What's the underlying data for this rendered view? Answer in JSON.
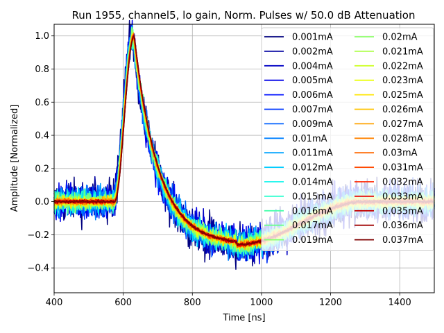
{
  "chart_data": {
    "type": "line",
    "title": "Run 1955, channel5, lo gain, Norm. Pulses w/ 50.0 dB Attenuation",
    "xlabel": "Time [ns]",
    "ylabel": "Amplitude [Normalized]",
    "xlim": [
      400,
      1500
    ],
    "ylim": [
      -0.55,
      1.07
    ],
    "xticks": [
      400,
      600,
      800,
      1000,
      1200,
      1400
    ],
    "yticks": [
      -0.4,
      -0.2,
      0.0,
      0.2,
      0.4,
      0.6,
      0.8,
      1.0
    ],
    "xtick_labels": [
      "400",
      "600",
      "800",
      "1000",
      "1200",
      "1400"
    ],
    "ytick_labels": [
      "−0.4",
      "−0.2",
      "0.0",
      "0.2",
      "0.4",
      "0.6",
      "0.8",
      "1.0"
    ],
    "grid": true,
    "legend_location": "top-right",
    "legend_columns": 2,
    "pulse_shape": {
      "baseline": 0.0,
      "onset_ns": 575,
      "peak_ns": 632,
      "peak_value": 1.0,
      "undershoot_min_ns": 930,
      "undershoot_value": -0.26,
      "recovery_ns": 1300
    },
    "series": [
      {
        "name": "0.001mA",
        "color": "#00007f"
      },
      {
        "name": "0.002mA",
        "color": "#00009f"
      },
      {
        "name": "0.004mA",
        "color": "#0000c3"
      },
      {
        "name": "0.005mA",
        "color": "#0000e8"
      },
      {
        "name": "0.006mA",
        "color": "#0010ff"
      },
      {
        "name": "0.007mA",
        "color": "#0038ff"
      },
      {
        "name": "0.009mA",
        "color": "#0060ff"
      },
      {
        "name": "0.01mA",
        "color": "#0080ff"
      },
      {
        "name": "0.011mA",
        "color": "#00a4ff"
      },
      {
        "name": "0.012mA",
        "color": "#00ccff"
      },
      {
        "name": "0.014mA",
        "color": "#0cf4eb"
      },
      {
        "name": "0.015mA",
        "color": "#29ffce"
      },
      {
        "name": "0.016mA",
        "color": "#49ffad"
      },
      {
        "name": "0.017mA",
        "color": "#69ff8d"
      },
      {
        "name": "0.019mA",
        "color": "#86ff70"
      },
      {
        "name": "0.02mA",
        "color": "#8dff69"
      },
      {
        "name": "0.021mA",
        "color": "#adff49"
      },
      {
        "name": "0.022mA",
        "color": "#ceff29"
      },
      {
        "name": "0.023mA",
        "color": "#ebff0c"
      },
      {
        "name": "0.025mA",
        "color": "#ffe600"
      },
      {
        "name": "0.026mA",
        "color": "#ffc400"
      },
      {
        "name": "0.027mA",
        "color": "#ffa300"
      },
      {
        "name": "0.028mA",
        "color": "#ff8200"
      },
      {
        "name": "0.03mA",
        "color": "#ff6800"
      },
      {
        "name": "0.031mA",
        "color": "#ff4800"
      },
      {
        "name": "0.032mA",
        "color": "#ff2500"
      },
      {
        "name": "0.033mA",
        "color": "#e80000"
      },
      {
        "name": "0.035mA",
        "color": "#c30000"
      },
      {
        "name": "0.036mA",
        "color": "#9f0000"
      },
      {
        "name": "0.037mA",
        "color": "#7f0000"
      }
    ]
  }
}
